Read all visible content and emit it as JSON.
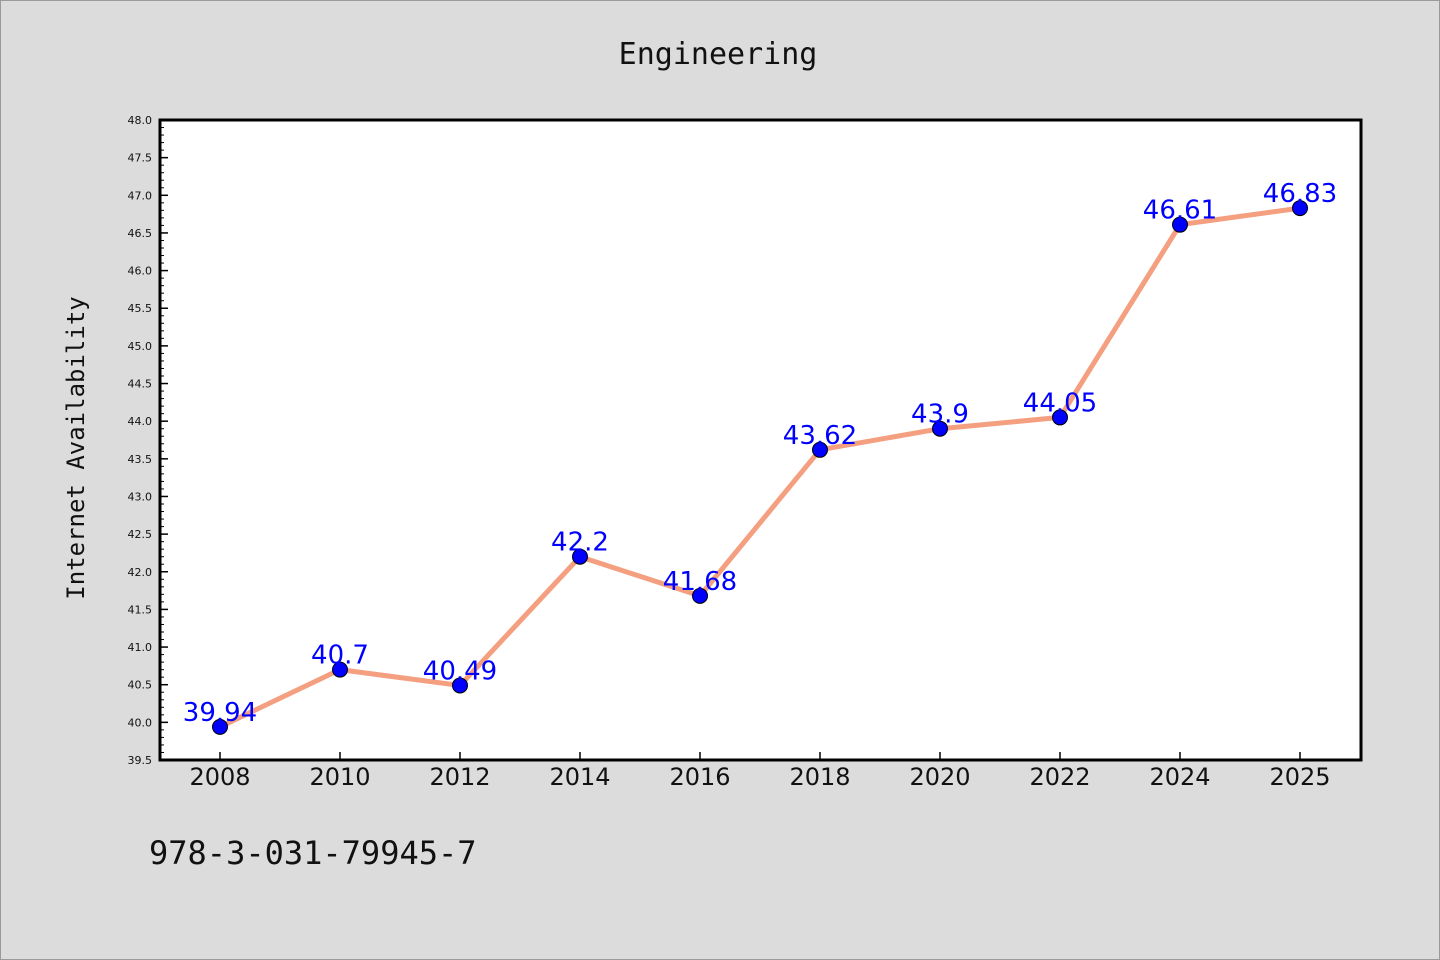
{
  "chart_data": {
    "type": "line",
    "title": "Engineering",
    "xlabel": "",
    "ylabel": "Internet Availability",
    "categories": [
      "2008",
      "2010",
      "2012",
      "2014",
      "2016",
      "2018",
      "2020",
      "2022",
      "2024",
      "2025"
    ],
    "values": [
      39.94,
      40.7,
      40.49,
      42.2,
      41.68,
      43.62,
      43.9,
      44.05,
      46.61,
      46.83
    ],
    "data_labels": [
      "39.94",
      "40.7",
      "40.49",
      "42.2",
      "41.68",
      "43.62",
      "43.9",
      "44.05",
      "46.61",
      "46.83"
    ],
    "ylim": [
      39.5,
      48.0
    ],
    "yticks": [
      "39.5",
      "40.0",
      "40.5",
      "41.0",
      "41.5",
      "42.0",
      "42.5",
      "43.0",
      "43.5",
      "44.0",
      "44.5",
      "45.0",
      "45.5",
      "46.0",
      "46.5",
      "47.0",
      "47.5",
      "48.0"
    ],
    "grid": false,
    "legend": "none",
    "line_color": "#f4a080",
    "marker_color": "#0000ff",
    "label_color": "#0000ff",
    "background_color": "#dcdcdc",
    "plot_background": "#ffffff"
  },
  "footer_text": "978-3-031-79945-7"
}
